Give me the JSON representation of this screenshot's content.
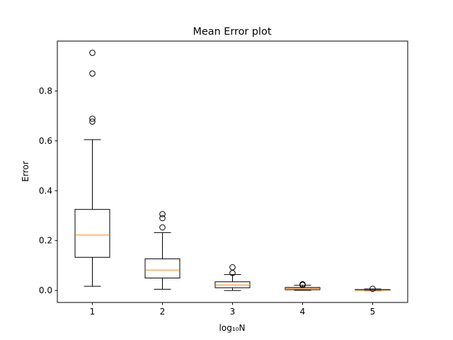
{
  "chart_data": {
    "type": "box",
    "title": "Mean Error plot",
    "xlabel": "log₁₀N",
    "ylabel": "Error",
    "ylim": [
      -0.048,
      1.0
    ],
    "yticks": [
      0.0,
      0.2,
      0.4,
      0.6,
      0.8
    ],
    "ytick_labels": [
      "0.0",
      "0.2",
      "0.4",
      "0.6",
      "0.8"
    ],
    "categories": [
      "1",
      "2",
      "3",
      "4",
      "5"
    ],
    "grid": false,
    "colors": {
      "box": "#000000",
      "median": "#ff7f0e",
      "flier": "#000000"
    },
    "boxes": [
      {
        "label": "1",
        "whisker_low": 0.017,
        "q1": 0.133,
        "median": 0.222,
        "q3": 0.325,
        "whisker_high": 0.605,
        "fliers": [
          0.953,
          0.87,
          0.689,
          0.677
        ]
      },
      {
        "label": "2",
        "whisker_low": 0.005,
        "q1": 0.05,
        "median": 0.082,
        "q3": 0.127,
        "whisker_high": 0.232,
        "fliers": [
          0.306,
          0.29,
          0.253
        ]
      },
      {
        "label": "3",
        "whisker_low": 0.0,
        "q1": 0.011,
        "median": 0.022,
        "q3": 0.035,
        "whisker_high": 0.064,
        "fliers": [
          0.093,
          0.07
        ]
      },
      {
        "label": "4",
        "whisker_low": 0.001,
        "q1": 0.003,
        "median": 0.008,
        "q3": 0.012,
        "whisker_high": 0.021,
        "fliers": [
          0.025,
          0.022
        ]
      },
      {
        "label": "5",
        "whisker_low": 0.0,
        "q1": 0.001,
        "median": 0.002,
        "q3": 0.004,
        "whisker_high": 0.006,
        "fliers": [
          0.007
        ]
      }
    ]
  }
}
